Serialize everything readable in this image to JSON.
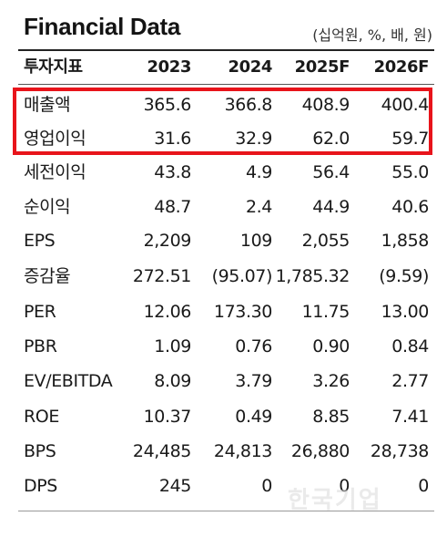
{
  "title": "Financial Data",
  "units": "(십억원, %, 배, 원)",
  "highlight_color": "#e8141b",
  "watermark": "한국기업",
  "header": [
    "투자지표",
    "2023",
    "2024",
    "2025F",
    "2026F"
  ],
  "rows": [
    [
      "매출액",
      "365.6",
      "366.8",
      "408.9",
      "400.4"
    ],
    [
      "영업이익",
      "31.6",
      "32.9",
      "62.0",
      "59.7"
    ],
    [
      "세전이익",
      "43.8",
      "4.9",
      "56.4",
      "55.0"
    ],
    [
      "순이익",
      "48.7",
      "2.4",
      "44.9",
      "40.6"
    ],
    [
      "EPS",
      "2,209",
      "109",
      "2,055",
      "1,858"
    ],
    [
      "증감율",
      "272.51",
      "(95.07)",
      "1,785.32",
      "(9.59)"
    ],
    [
      "PER",
      "12.06",
      "173.30",
      "11.75",
      "13.00"
    ],
    [
      "PBR",
      "1.09",
      "0.76",
      "0.90",
      "0.84"
    ],
    [
      "EV/EBITDA",
      "8.09",
      "3.79",
      "3.26",
      "2.77"
    ],
    [
      "ROE",
      "10.37",
      "0.49",
      "8.85",
      "7.41"
    ],
    [
      "BPS",
      "24,485",
      "24,813",
      "26,880",
      "28,738"
    ],
    [
      "DPS",
      "245",
      "0",
      "0",
      "0"
    ]
  ]
}
